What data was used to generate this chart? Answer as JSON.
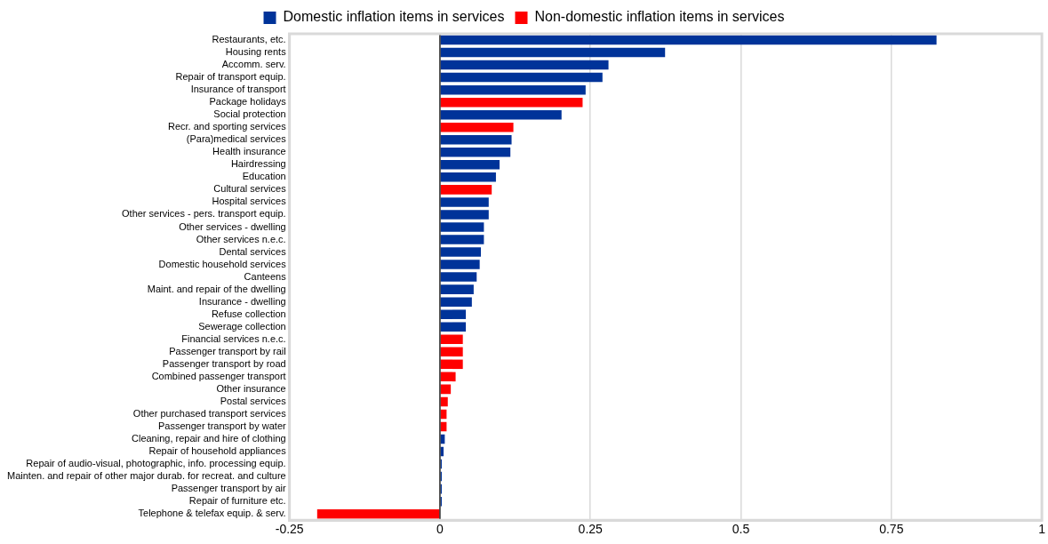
{
  "chart_data": {
    "type": "bar",
    "orientation": "horizontal",
    "stacked": true,
    "categories": [
      "Restaurants, etc.",
      "Housing rents",
      "Accomm. serv.",
      "Repair of transport equip.",
      "Insurance of transport",
      "Package holidays",
      "Social protection",
      "Recr. and sporting services",
      "(Para)medical services",
      "Health insurance",
      "Hairdressing",
      "Education",
      "Cultural services",
      "Hospital services",
      "Other services - pers. transport equip.",
      "Other services - dwelling",
      "Other services n.e.c.",
      "Dental services",
      "Domestic household services",
      "Canteens",
      "Maint. and repair of the dwelling",
      "Insurance - dwelling",
      "Refuse collection",
      "Sewerage collection",
      "Financial services n.e.c.",
      "Passenger transport by rail",
      "Passenger transport by road",
      "Combined passenger transport",
      "Other insurance",
      "Postal services",
      "Other purchased transport services",
      "Passenger transport by water",
      "Cleaning, repair and hire of clothing",
      "Repair of household appliances",
      "Repair of audio-visual, photographic, info. processing equip.",
      "Mainten. and repair of other major durab. for recreat. and culture",
      "Passenger transport by air",
      "Repair of furniture etc.",
      "Telephone & telefax equip. & serv."
    ],
    "series": [
      {
        "name": "Domestic inflation items in services",
        "color": "#003399",
        "values": [
          0.825,
          0.374,
          0.28,
          0.27,
          0.242,
          null,
          0.202,
          null,
          0.119,
          0.117,
          0.099,
          0.093,
          null,
          0.081,
          0.081,
          0.073,
          0.073,
          0.068,
          0.066,
          0.061,
          0.056,
          0.053,
          0.043,
          0.043,
          null,
          null,
          null,
          null,
          null,
          null,
          null,
          null,
          0.008,
          0.006,
          0.003,
          0.003,
          0.003,
          0.003,
          null
        ]
      },
      {
        "name": "Non-domestic inflation items in services",
        "color": "#ff0000",
        "values": [
          null,
          null,
          null,
          null,
          null,
          0.237,
          null,
          0.122,
          null,
          null,
          null,
          null,
          0.086,
          null,
          null,
          null,
          null,
          null,
          null,
          null,
          null,
          null,
          null,
          null,
          0.038,
          0.038,
          0.038,
          0.026,
          0.018,
          0.013,
          0.011,
          0.011,
          null,
          null,
          null,
          null,
          null,
          null,
          -0.204
        ]
      }
    ],
    "xlim": [
      -0.25,
      1
    ],
    "xticks": [
      -0.25,
      0,
      0.25,
      0.5,
      0.75,
      1
    ],
    "grid": "x",
    "legend": "top"
  }
}
